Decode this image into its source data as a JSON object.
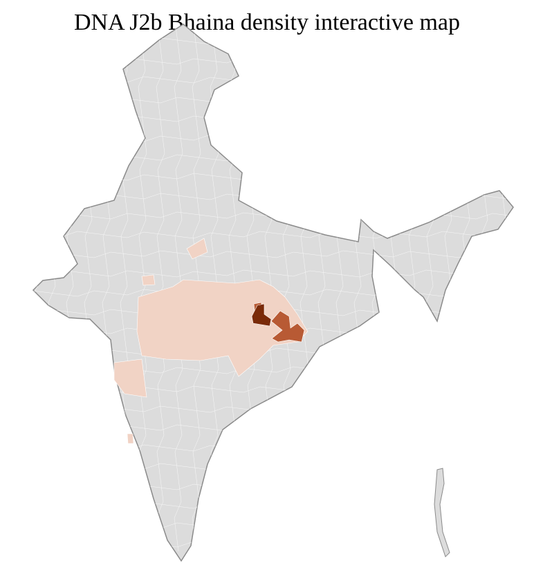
{
  "title": "DNA J2b Bhaina density interactive map",
  "colors": {
    "no_data": "#dcdcdc",
    "district_border": "#ffffff",
    "state_border": "#8a8a8a",
    "density_low": "#f1d3c5",
    "density_medium": "#b85a34",
    "density_high": "#7a2a08"
  }
}
